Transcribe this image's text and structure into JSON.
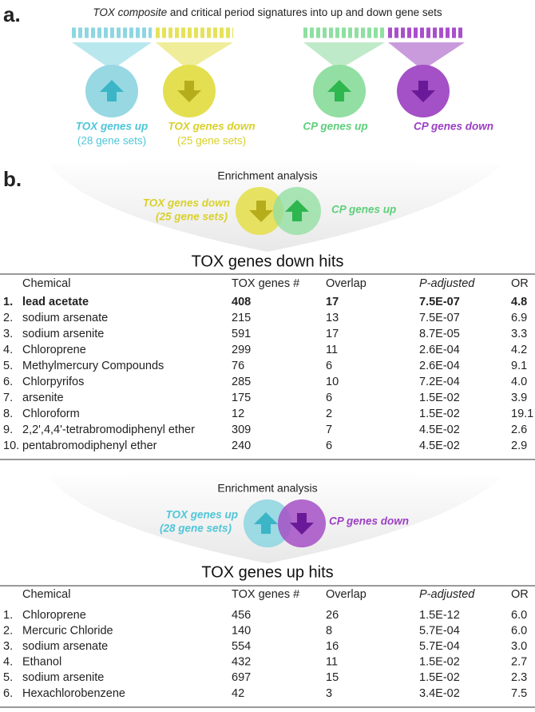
{
  "panel_a": {
    "label": "a.",
    "title_italic": "TOX composite",
    "title_rest": " and critical period signatures into up and down gene sets",
    "groups": [
      {
        "name": "TOX genes up",
        "sub": "(28 gene sets)"
      },
      {
        "name": "TOX genes down",
        "sub": "(25 gene sets)"
      },
      {
        "name": "CP genes up"
      },
      {
        "name": "CP genes down"
      }
    ]
  },
  "panel_b": {
    "label": "b.",
    "sections": [
      {
        "enrichment": "Enrichment analysis",
        "left": "TOX genes down",
        "left_sub": "(25 gene sets)",
        "right": "CP genes up",
        "table_title": "TOX genes down hits",
        "columns": [
          "Chemical",
          "TOX genes #",
          "Overlap",
          "P-adjusted",
          "OR"
        ],
        "highlight_row": 0,
        "highlight_color": "#e0452b",
        "rows": [
          [
            "1.",
            "lead acetate",
            "408",
            "17",
            "7.5E-07",
            "4.8"
          ],
          [
            "2.",
            "sodium arsenate",
            "215",
            "13",
            "7.5E-07",
            "6.9"
          ],
          [
            "3.",
            "sodium arsenite",
            "591",
            "17",
            "8.7E-05",
            "3.3"
          ],
          [
            "4.",
            "Chloroprene",
            "299",
            "11",
            "2.6E-04",
            "4.2"
          ],
          [
            "5.",
            "Methylmercury Compounds",
            "76",
            "6",
            "2.6E-04",
            "9.1"
          ],
          [
            "6.",
            "Chlorpyrifos",
            "285",
            "10",
            "7.2E-04",
            "4.0"
          ],
          [
            "7.",
            "arsenite",
            "175",
            "6",
            "1.5E-02",
            "3.9"
          ],
          [
            "8.",
            "Chloroform",
            "12",
            "2",
            "1.5E-02",
            "19.1"
          ],
          [
            "9.",
            "2,2',4,4'-tetrabromodiphenyl ether",
            "309",
            "7",
            "4.5E-02",
            "2.6"
          ],
          [
            "10.",
            "pentabromodiphenyl ether",
            "240",
            "6",
            "4.5E-02",
            "2.9"
          ]
        ]
      },
      {
        "enrichment": "Enrichment analysis",
        "left": "TOX genes up",
        "left_sub": "(28 gene sets)",
        "right": "CP genes down",
        "table_title": "TOX genes up hits",
        "columns": [
          "Chemical",
          "TOX genes #",
          "Overlap",
          "P-adjusted",
          "OR"
        ],
        "rows": [
          [
            "1.",
            "Chloroprene",
            "456",
            "26",
            "1.5E-12",
            "6.0"
          ],
          [
            "2.",
            "Mercuric Chloride",
            "140",
            "8",
            "5.7E-04",
            "6.0"
          ],
          [
            "3.",
            "sodium arsenate",
            "554",
            "16",
            "5.7E-04",
            "3.0"
          ],
          [
            "4.",
            "Ethanol",
            "432",
            "11",
            "1.5E-02",
            "2.7"
          ],
          [
            "5.",
            "sodium arsenite",
            "697",
            "15",
            "1.5E-02",
            "2.3"
          ],
          [
            "6.",
            "Hexachlorobenzene",
            "42",
            "3",
            "3.4E-02",
            "7.5"
          ]
        ]
      }
    ]
  }
}
